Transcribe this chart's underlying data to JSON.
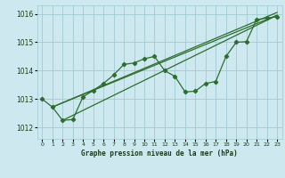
{
  "title": "Graphe pression niveau de la mer (hPa)",
  "background_color": "#cde8ef",
  "grid_color": "#9fcbd4",
  "line_color": "#2d6e2d",
  "xlim": [
    -0.5,
    23.5
  ],
  "ylim": [
    1011.6,
    1016.3
  ],
  "yticks": [
    1012,
    1013,
    1014,
    1015,
    1016
  ],
  "xticks": [
    0,
    1,
    2,
    3,
    4,
    5,
    6,
    7,
    8,
    9,
    10,
    11,
    12,
    13,
    14,
    15,
    16,
    17,
    18,
    19,
    20,
    21,
    22,
    23
  ],
  "series_wiggly": {
    "x": [
      0,
      1,
      2,
      3,
      4,
      5,
      6,
      7,
      8,
      9,
      10,
      11,
      12,
      13,
      14,
      15,
      16,
      17,
      18,
      19,
      20,
      21,
      22,
      23
    ],
    "y": [
      1013.0,
      1012.72,
      1012.25,
      1012.28,
      1013.08,
      1013.3,
      1013.55,
      1013.85,
      1014.22,
      1014.27,
      1014.42,
      1014.5,
      1014.0,
      1013.8,
      1013.25,
      1013.28,
      1013.55,
      1013.62,
      1014.5,
      1015.0,
      1015.02,
      1015.8,
      1015.85,
      1015.9
    ]
  },
  "series_straight1": {
    "x": [
      1,
      23
    ],
    "y": [
      1012.72,
      1015.95
    ]
  },
  "series_straight2": {
    "x": [
      1,
      23
    ],
    "y": [
      1012.72,
      1016.05
    ]
  },
  "series_straight3": {
    "x": [
      2,
      23
    ],
    "y": [
      1012.25,
      1015.95
    ]
  }
}
